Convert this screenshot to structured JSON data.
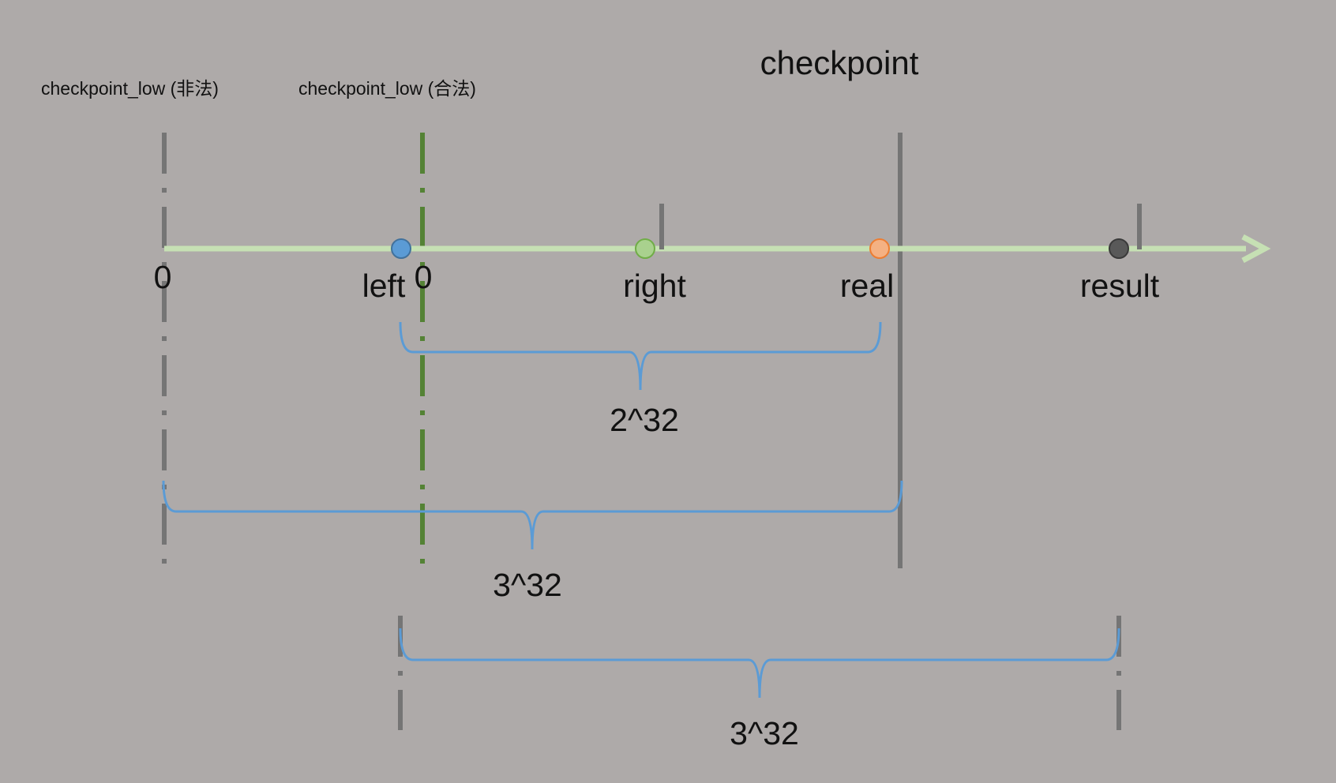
{
  "title": "checkpoint",
  "labels": {
    "low_illegal": "checkpoint_low (非法)",
    "low_legal": "checkpoint_low (合法)"
  },
  "axis": {
    "zero_illegal": "0",
    "zero_legal": "0"
  },
  "points": {
    "left": "left",
    "right": "right",
    "real": "real",
    "result": "result"
  },
  "spans": {
    "left_to_real": "2^32",
    "zero_to_checkpoint": "3^32",
    "left_to_result": "3^32"
  },
  "colors": {
    "background": "#aeaaa9",
    "axis": "#c6e0b4",
    "gray_line": "#757575",
    "green_line": "#548235",
    "brace": "#5b9bd5",
    "point_left": "#5b9bd5",
    "point_right": "#a9d18e",
    "point_real": "#f4b183",
    "point_result": "#595959"
  }
}
